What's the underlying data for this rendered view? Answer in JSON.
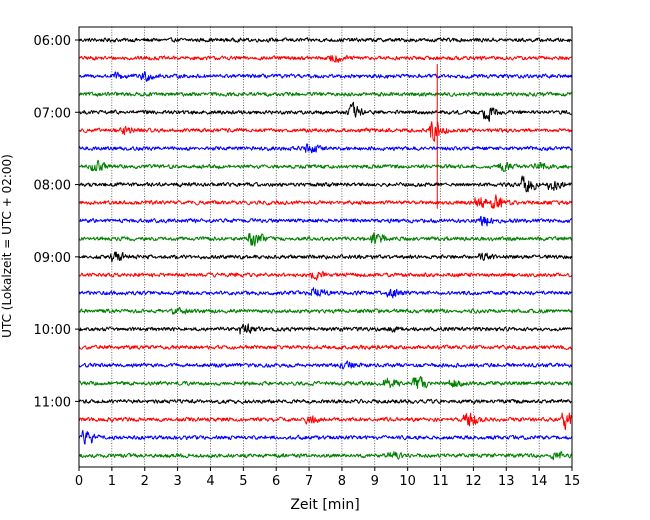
{
  "chart_data": {
    "type": "line",
    "title": "",
    "xlabel": "Zeit  [min]",
    "ylabel": "UTC (Lokalzeit = UTC + 02:00)",
    "xlim": [
      0,
      15
    ],
    "x_ticks": [
      "0",
      "1",
      "2",
      "3",
      "4",
      "5",
      "6",
      "7",
      "8",
      "9",
      "10",
      "11",
      "12",
      "13",
      "14",
      "15"
    ],
    "y_ticks": [
      "06:00",
      "07:00",
      "08:00",
      "09:00",
      "10:00",
      "11:00"
    ],
    "grid": "vertical dotted at each minute",
    "trace_colors": [
      "#000000",
      "#ff0000",
      "#0000ff",
      "#008000"
    ],
    "traces": [
      {
        "start": "06:00",
        "color": "#000000",
        "events": []
      },
      {
        "start": "06:15",
        "color": "#ff0000",
        "events": [
          {
            "t": 7.8,
            "amp": 0.45
          }
        ]
      },
      {
        "start": "06:30",
        "color": "#0000ff",
        "events": [
          {
            "t": 1.2,
            "amp": 0.35
          },
          {
            "t": 2.0,
            "amp": 0.5
          }
        ]
      },
      {
        "start": "06:45",
        "color": "#008000",
        "events": []
      },
      {
        "start": "07:00",
        "color": "#000000",
        "events": [
          {
            "t": 8.3,
            "amp": 0.95
          },
          {
            "t": 12.4,
            "amp": 0.9
          }
        ]
      },
      {
        "start": "07:15",
        "color": "#ff0000",
        "events": [
          {
            "t": 1.4,
            "amp": 0.35
          },
          {
            "t": 10.8,
            "amp": 1.2
          },
          {
            "t": 10.9,
            "spike": 3.0
          }
        ]
      },
      {
        "start": "07:30",
        "color": "#0000ff",
        "events": [
          {
            "t": 7.0,
            "amp": 0.4
          }
        ]
      },
      {
        "start": "07:45",
        "color": "#008000",
        "events": [
          {
            "t": 0.5,
            "amp": 0.55
          },
          {
            "t": 12.9,
            "amp": 0.4
          },
          {
            "t": 14.0,
            "amp": 0.45
          }
        ]
      },
      {
        "start": "08:00",
        "color": "#000000",
        "events": [
          {
            "t": 13.6,
            "amp": 1.0
          },
          {
            "t": 14.4,
            "amp": 0.6
          }
        ]
      },
      {
        "start": "08:15",
        "color": "#ff0000",
        "events": [
          {
            "t": 12.2,
            "amp": 0.7
          },
          {
            "t": 12.7,
            "amp": 0.75
          }
        ]
      },
      {
        "start": "08:30",
        "color": "#0000ff",
        "events": [
          {
            "t": 12.3,
            "amp": 0.55
          }
        ]
      },
      {
        "start": "08:45",
        "color": "#008000",
        "events": [
          {
            "t": 5.3,
            "amp": 1.0
          },
          {
            "t": 9.0,
            "amp": 0.9
          }
        ]
      },
      {
        "start": "09:00",
        "color": "#000000",
        "events": [
          {
            "t": 1.1,
            "amp": 0.6
          },
          {
            "t": 12.3,
            "amp": 0.3
          }
        ]
      },
      {
        "start": "09:15",
        "color": "#ff0000",
        "events": [
          {
            "t": 7.2,
            "amp": 0.45
          }
        ]
      },
      {
        "start": "09:30",
        "color": "#0000ff",
        "events": [
          {
            "t": 7.2,
            "amp": 0.5
          },
          {
            "t": 9.5,
            "amp": 0.4
          }
        ]
      },
      {
        "start": "09:45",
        "color": "#008000",
        "events": [
          {
            "t": 3.0,
            "amp": 0.35
          }
        ]
      },
      {
        "start": "10:00",
        "color": "#000000",
        "events": [
          {
            "t": 5.0,
            "amp": 0.65
          },
          {
            "t": 9.5,
            "amp": 0.3
          }
        ]
      },
      {
        "start": "10:15",
        "color": "#ff0000",
        "events": []
      },
      {
        "start": "10:30",
        "color": "#0000ff",
        "events": [
          {
            "t": 8.1,
            "amp": 0.35
          }
        ]
      },
      {
        "start": "10:45",
        "color": "#008000",
        "events": [
          {
            "t": 9.4,
            "amp": 0.65
          },
          {
            "t": 10.3,
            "amp": 0.8
          },
          {
            "t": 11.4,
            "amp": 0.45
          }
        ]
      },
      {
        "start": "11:00",
        "color": "#000000",
        "events": []
      },
      {
        "start": "11:15",
        "color": "#ff0000",
        "events": [
          {
            "t": 7.0,
            "amp": 0.4
          },
          {
            "t": 11.8,
            "amp": 1.0
          },
          {
            "t": 14.8,
            "amp": 1.0
          }
        ]
      },
      {
        "start": "11:30",
        "color": "#0000ff",
        "events": [
          {
            "t": 0.25,
            "amp": 0.85
          }
        ]
      },
      {
        "start": "11:45",
        "color": "#008000",
        "events": [
          {
            "t": 9.5,
            "amp": 0.4
          },
          {
            "t": 14.5,
            "amp": 0.4
          }
        ]
      }
    ]
  }
}
